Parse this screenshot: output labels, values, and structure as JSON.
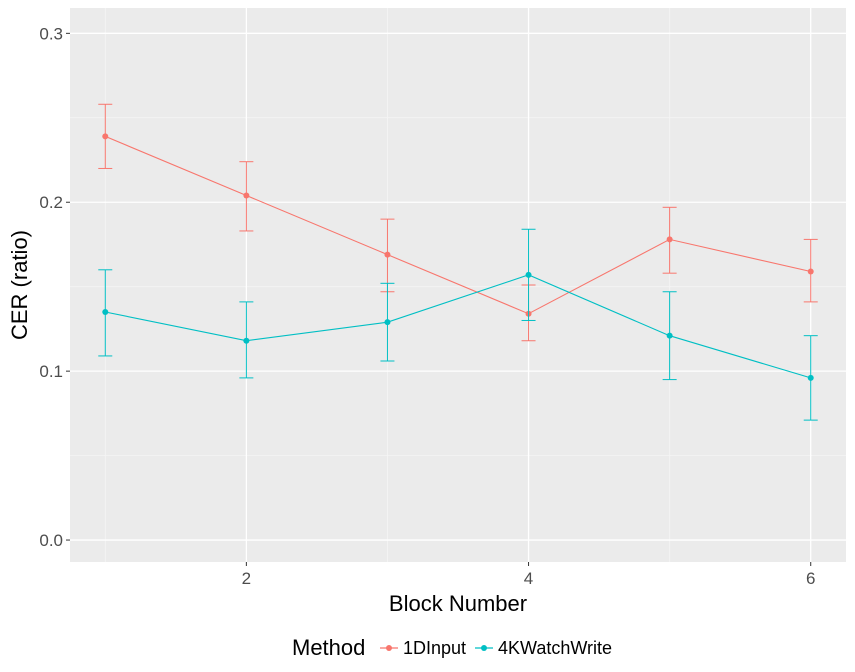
{
  "chart_data": {
    "type": "line",
    "xlabel": "Block Number",
    "ylabel": "CER (ratio)",
    "x": [
      1,
      2,
      3,
      4,
      5,
      6
    ],
    "xticks": [
      2,
      4,
      6
    ],
    "xlim": [
      0.75,
      6.25
    ],
    "yticks": [
      0.0,
      0.1,
      0.2,
      0.3
    ],
    "ylim": [
      -0.013,
      0.315
    ],
    "grid": true,
    "legend": {
      "title": "Method",
      "placement": "bottom"
    },
    "series": [
      {
        "name": "1DInput",
        "color": "#F8766D",
        "values": [
          0.239,
          0.204,
          0.169,
          0.134,
          0.178,
          0.159
        ],
        "err_low": [
          0.22,
          0.183,
          0.147,
          0.118,
          0.158,
          0.141
        ],
        "err_high": [
          0.258,
          0.224,
          0.19,
          0.151,
          0.197,
          0.178
        ]
      },
      {
        "name": "4KWatchWrite",
        "color": "#00BFC4",
        "values": [
          0.135,
          0.118,
          0.129,
          0.157,
          0.121,
          0.096
        ],
        "err_low": [
          0.109,
          0.096,
          0.106,
          0.13,
          0.095,
          0.071
        ],
        "err_high": [
          0.16,
          0.141,
          0.152,
          0.184,
          0.147,
          0.121
        ]
      }
    ]
  }
}
